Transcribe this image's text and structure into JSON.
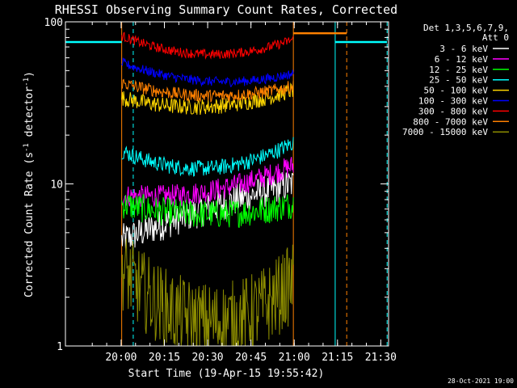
{
  "chart_data": {
    "type": "line",
    "title": "RHESSI Observing Summary Count Rates, Corrected",
    "xlabel": "Start Time (19-Apr-15 19:55:42)",
    "ylabel_main": "Corrected Count Rate (s",
    "ylabel_sup1": "-1",
    "ylabel_mid": " detector",
    "ylabel_sup2": "-1",
    "ylabel_end": ")",
    "yscale": "log",
    "ylim": [
      1,
      100
    ],
    "xlim_minutes": [
      -15,
      97
    ],
    "x_ticks": [
      {
        "t": 4.3,
        "label": "20:00"
      },
      {
        "t": 19.3,
        "label": "20:15"
      },
      {
        "t": 34.3,
        "label": "20:30"
      },
      {
        "t": 49.3,
        "label": "20:45"
      },
      {
        "t": 64.3,
        "label": "21:00"
      },
      {
        "t": 79.3,
        "label": "21:15"
      },
      {
        "t": 94.3,
        "label": "21:30"
      }
    ],
    "y_ticks": [
      {
        "v": 1,
        "label": "1"
      },
      {
        "v": 10,
        "label": "10"
      },
      {
        "v": 100,
        "label": "100"
      }
    ],
    "legend_header": [
      "Det 1,3,5,6,7,9,",
      "Att 0"
    ],
    "legend_position": "top-right",
    "series": [
      {
        "name": "3 - 6 keV",
        "color": "#ffffff",
        "start": 4.5,
        "mid": 7.0,
        "end": 10.0,
        "noise": 0.1
      },
      {
        "name": "6 - 12 keV",
        "color": "#ff00ff",
        "start": 8.5,
        "mid": 9.0,
        "end": 13.0,
        "noise": 0.07
      },
      {
        "name": "12 - 25 keV",
        "color": "#00ff00",
        "start": 7.5,
        "mid": 6.5,
        "end": 7.5,
        "noise": 0.09
      },
      {
        "name": "25 - 50 keV",
        "color": "#00ffff",
        "start": 16.0,
        "mid": 12.5,
        "end": 18.0,
        "noise": 0.05
      },
      {
        "name": "50 - 100 keV",
        "color": "#ffd700",
        "start": 34.0,
        "mid": 30.0,
        "end": 38.0,
        "noise": 0.05
      },
      {
        "name": "100 - 300 keV",
        "color": "#0000ff",
        "start": 56.0,
        "mid": 43.0,
        "end": 48.0,
        "noise": 0.03
      },
      {
        "name": "300 - 800 keV",
        "color": "#ff0000",
        "start": 82.0,
        "mid": 63.0,
        "end": 78.0,
        "noise": 0.03
      },
      {
        "name": "800 - 7000 keV",
        "color": "#ff8000",
        "start": 42.0,
        "mid": 35.0,
        "end": 40.0,
        "noise": 0.04
      },
      {
        "name": "7000 - 15000 keV",
        "color": "#8b8b00",
        "start": 3.0,
        "mid": 1.4,
        "end": 2.5,
        "noise": 0.25
      }
    ],
    "time_range_start": 4.5,
    "time_range_end": 64.0,
    "saa_flat_segments": [
      {
        "t0": -15,
        "t1": 4.5,
        "v": 75,
        "color": "#00ffff"
      },
      {
        "t0": 64.0,
        "t1": 82.5,
        "v": 85,
        "color": "#ff8000"
      },
      {
        "t0": 78.5,
        "t1": 96.5,
        "v": 75,
        "color": "#00ffff"
      }
    ],
    "markers": [
      {
        "t": 4.5,
        "color": "#ff8000",
        "style": "solid"
      },
      {
        "t": 8.5,
        "color": "#00ffff",
        "style": "dashed"
      },
      {
        "t": 64.0,
        "color": "#ff8000",
        "style": "solid"
      },
      {
        "t": 78.5,
        "color": "#00ffff",
        "style": "solid"
      },
      {
        "t": 82.5,
        "color": "#ff8000",
        "style": "dashed"
      },
      {
        "t": 96.5,
        "color": "#00ffff",
        "style": "dashed"
      }
    ],
    "generated_stamp": "28-Oct-2021 19:00"
  }
}
